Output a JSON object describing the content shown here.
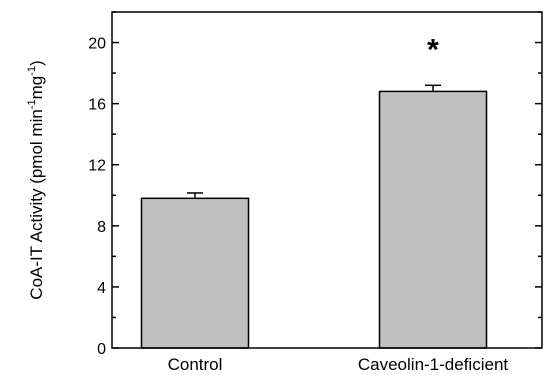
{
  "chart_data": {
    "type": "bar",
    "categories": [
      "Control",
      "Caveolin-1-deficient"
    ],
    "values": [
      9.8,
      16.8
    ],
    "errors": [
      0.35,
      0.4
    ],
    "title": "",
    "xlabel": "",
    "ylabel": {
      "main": "CoA-IT Activity (pmol min",
      "sup1": "-1",
      "mid": "mg",
      "sup2": "-1",
      "close": ")"
    },
    "ylim": [
      0,
      22
    ],
    "yticks": [
      0,
      4,
      8,
      12,
      16,
      20
    ],
    "annotations": [
      {
        "category": "Caveolin-1-deficient",
        "text": "*"
      }
    ],
    "bar_color": "#c0c0c0",
    "grid": false,
    "legend": "none"
  }
}
